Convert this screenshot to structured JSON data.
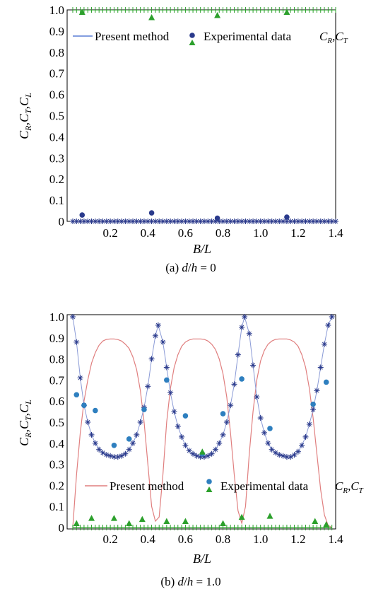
{
  "chart_data": [
    {
      "type": "line",
      "caption": "(a) d/h = 0",
      "xlabel": "B/L",
      "ylabel": "CR, CT, CL",
      "xlim": [
        0.0,
        1.4
      ],
      "ylim": [
        0.0,
        1.0
      ],
      "xticks": [
        0.2,
        0.4,
        0.6,
        0.8,
        1.0,
        1.2,
        1.4
      ],
      "yticks": [
        0,
        0.1,
        0.2,
        0.3,
        0.4,
        0.5,
        0.6,
        0.7,
        0.8,
        0.9,
        1.0
      ],
      "legend": {
        "present": "Present method",
        "experimental": "Experimental data"
      },
      "colors": {
        "reflection": "#2a3a8c",
        "transmission": "#2ca02c",
        "loss": "#e07f7f",
        "present": "#5b7fd6"
      },
      "series": [
        {
          "name": "CT",
          "values": [
            [
              0.0,
              1.0
            ],
            [
              1.4,
              1.0
            ]
          ]
        },
        {
          "name": "CR",
          "values": [
            [
              0.0,
              0.0
            ],
            [
              1.4,
              0.0
            ]
          ]
        },
        {
          "name": "CL",
          "values": [
            [
              0.0,
              0.0
            ],
            [
              1.4,
              0.0
            ]
          ]
        },
        {
          "name": "CR",
          "values": [
            [
              0.05,
              0.03
            ],
            [
              0.42,
              0.04
            ],
            [
              0.77,
              0.015
            ],
            [
              1.14,
              0.02
            ]
          ]
        },
        {
          "name": "CT",
          "values": [
            [
              0.05,
              0.99
            ],
            [
              0.42,
              0.965
            ],
            [
              0.77,
              0.975
            ],
            [
              1.14,
              0.99
            ]
          ]
        }
      ]
    },
    {
      "type": "line",
      "caption": "(b) d/h = 1.0",
      "xlabel": "B/L",
      "ylabel": "CR, CT, CL",
      "xlim": [
        0.0,
        1.4
      ],
      "ylim": [
        0.0,
        1.0
      ],
      "xticks": [
        0.2,
        0.4,
        0.6,
        0.8,
        1.0,
        1.2,
        1.4
      ],
      "yticks": [
        0,
        0.1,
        0.2,
        0.3,
        0.4,
        0.5,
        0.6,
        0.7,
        0.8,
        0.9,
        1.0
      ],
      "legend": {
        "present": "Present method",
        "experimental": "Experimental data"
      },
      "colors": {
        "reflection": "#2a3a8c",
        "transmission": "#2ca02c",
        "loss": "#e07f7f",
        "present": "#5b7fd6"
      },
      "series": [
        {
          "name": "CR",
          "values": [
            [
              0.0,
              1.0
            ],
            [
              0.02,
              0.88
            ],
            [
              0.04,
              0.71
            ],
            [
              0.06,
              0.58
            ],
            [
              0.08,
              0.5
            ],
            [
              0.1,
              0.44
            ],
            [
              0.12,
              0.4
            ],
            [
              0.14,
              0.37
            ],
            [
              0.16,
              0.355
            ],
            [
              0.18,
              0.345
            ],
            [
              0.2,
              0.34
            ],
            [
              0.22,
              0.335
            ],
            [
              0.24,
              0.335
            ],
            [
              0.26,
              0.34
            ],
            [
              0.28,
              0.35
            ],
            [
              0.3,
              0.37
            ],
            [
              0.32,
              0.4
            ],
            [
              0.34,
              0.44
            ],
            [
              0.36,
              0.5
            ],
            [
              0.38,
              0.57
            ],
            [
              0.4,
              0.67
            ],
            [
              0.42,
              0.8
            ],
            [
              0.44,
              0.91
            ],
            [
              0.455,
              0.96
            ],
            [
              0.48,
              0.88
            ],
            [
              0.5,
              0.76
            ],
            [
              0.52,
              0.64
            ],
            [
              0.54,
              0.55
            ],
            [
              0.56,
              0.48
            ],
            [
              0.58,
              0.43
            ],
            [
              0.6,
              0.39
            ],
            [
              0.62,
              0.365
            ],
            [
              0.64,
              0.35
            ],
            [
              0.66,
              0.34
            ],
            [
              0.68,
              0.335
            ],
            [
              0.7,
              0.335
            ],
            [
              0.72,
              0.34
            ],
            [
              0.74,
              0.35
            ],
            [
              0.76,
              0.37
            ],
            [
              0.78,
              0.4
            ],
            [
              0.8,
              0.44
            ],
            [
              0.82,
              0.5
            ],
            [
              0.84,
              0.58
            ],
            [
              0.86,
              0.68
            ],
            [
              0.88,
              0.82
            ],
            [
              0.9,
              0.95
            ],
            [
              0.915,
              1.0
            ],
            [
              0.94,
              0.92
            ],
            [
              0.96,
              0.77
            ],
            [
              0.98,
              0.62
            ],
            [
              1.0,
              0.52
            ],
            [
              1.02,
              0.45
            ],
            [
              1.04,
              0.4
            ],
            [
              1.06,
              0.37
            ],
            [
              1.08,
              0.355
            ],
            [
              1.1,
              0.345
            ],
            [
              1.12,
              0.34
            ],
            [
              1.14,
              0.335
            ],
            [
              1.16,
              0.335
            ],
            [
              1.18,
              0.345
            ],
            [
              1.2,
              0.36
            ],
            [
              1.22,
              0.39
            ],
            [
              1.24,
              0.43
            ],
            [
              1.26,
              0.49
            ],
            [
              1.28,
              0.56
            ],
            [
              1.3,
              0.65
            ],
            [
              1.32,
              0.76
            ],
            [
              1.34,
              0.87
            ],
            [
              1.36,
              0.96
            ],
            [
              1.38,
              1.0
            ]
          ]
        },
        {
          "name": "CL",
          "values": [
            [
              0.0,
              0.0
            ],
            [
              0.02,
              0.25
            ],
            [
              0.04,
              0.45
            ],
            [
              0.06,
              0.6
            ],
            [
              0.08,
              0.7
            ],
            [
              0.1,
              0.78
            ],
            [
              0.12,
              0.83
            ],
            [
              0.14,
              0.865
            ],
            [
              0.16,
              0.885
            ],
            [
              0.18,
              0.893
            ],
            [
              0.2,
              0.895
            ],
            [
              0.22,
              0.895
            ],
            [
              0.24,
              0.892
            ],
            [
              0.26,
              0.885
            ],
            [
              0.28,
              0.87
            ],
            [
              0.3,
              0.85
            ],
            [
              0.32,
              0.81
            ],
            [
              0.34,
              0.75
            ],
            [
              0.36,
              0.65
            ],
            [
              0.38,
              0.5
            ],
            [
              0.4,
              0.3
            ],
            [
              0.42,
              0.1
            ],
            [
              0.44,
              0.03
            ],
            [
              0.46,
              0.05
            ],
            [
              0.48,
              0.25
            ],
            [
              0.5,
              0.5
            ],
            [
              0.52,
              0.66
            ],
            [
              0.54,
              0.76
            ],
            [
              0.56,
              0.82
            ],
            [
              0.58,
              0.86
            ],
            [
              0.6,
              0.88
            ],
            [
              0.62,
              0.89
            ],
            [
              0.64,
              0.895
            ],
            [
              0.66,
              0.895
            ],
            [
              0.68,
              0.895
            ],
            [
              0.7,
              0.893
            ],
            [
              0.72,
              0.885
            ],
            [
              0.74,
              0.87
            ],
            [
              0.76,
              0.845
            ],
            [
              0.78,
              0.8
            ],
            [
              0.8,
              0.73
            ],
            [
              0.82,
              0.62
            ],
            [
              0.84,
              0.45
            ],
            [
              0.86,
              0.25
            ],
            [
              0.88,
              0.08
            ],
            [
              0.9,
              0.02
            ],
            [
              0.92,
              0.1
            ],
            [
              0.94,
              0.35
            ],
            [
              0.96,
              0.55
            ],
            [
              0.98,
              0.7
            ],
            [
              1.0,
              0.79
            ],
            [
              1.02,
              0.84
            ],
            [
              1.04,
              0.87
            ],
            [
              1.06,
              0.885
            ],
            [
              1.08,
              0.893
            ],
            [
              1.1,
              0.895
            ],
            [
              1.12,
              0.895
            ],
            [
              1.14,
              0.895
            ],
            [
              1.16,
              0.89
            ],
            [
              1.18,
              0.88
            ],
            [
              1.2,
              0.86
            ],
            [
              1.22,
              0.82
            ],
            [
              1.24,
              0.76
            ],
            [
              1.26,
              0.66
            ],
            [
              1.28,
              0.52
            ],
            [
              1.3,
              0.35
            ],
            [
              1.32,
              0.18
            ],
            [
              1.34,
              0.06
            ],
            [
              1.36,
              0.01
            ],
            [
              1.38,
              0.0
            ]
          ]
        },
        {
          "name": "CT",
          "values": [
            [
              0.0,
              0.0
            ],
            [
              1.38,
              0.0
            ]
          ]
        },
        {
          "name": "CR",
          "values": [
            [
              0.02,
              0.63
            ],
            [
              0.06,
              0.58
            ],
            [
              0.12,
              0.555
            ],
            [
              0.22,
              0.39
            ],
            [
              0.3,
              0.42
            ],
            [
              0.38,
              0.56
            ],
            [
              0.5,
              0.7
            ],
            [
              0.6,
              0.53
            ],
            [
              0.69,
              0.35
            ],
            [
              0.8,
              0.54
            ],
            [
              0.9,
              0.705
            ],
            [
              1.05,
              0.47
            ],
            [
              1.28,
              0.585
            ],
            [
              1.35,
              0.69
            ]
          ]
        },
        {
          "name": "CT",
          "values": [
            [
              0.02,
              0.02
            ],
            [
              0.1,
              0.045
            ],
            [
              0.22,
              0.045
            ],
            [
              0.3,
              0.02
            ],
            [
              0.37,
              0.04
            ],
            [
              0.5,
              0.03
            ],
            [
              0.6,
              0.03
            ],
            [
              0.69,
              0.36
            ],
            [
              0.8,
              0.02
            ],
            [
              0.9,
              0.05
            ],
            [
              1.05,
              0.055
            ],
            [
              1.29,
              0.03
            ],
            [
              1.35,
              0.015
            ]
          ]
        }
      ]
    }
  ]
}
